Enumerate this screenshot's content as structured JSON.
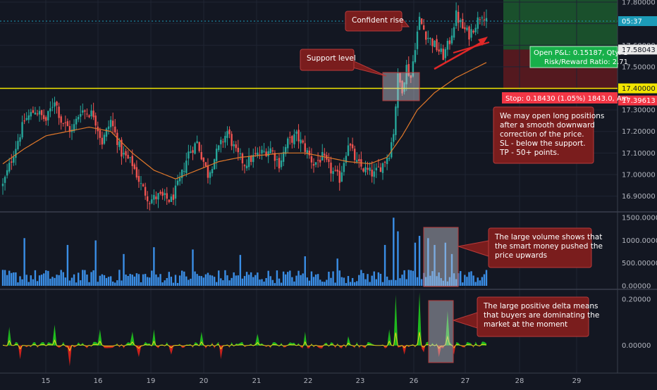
{
  "colors": {
    "background": "#131722",
    "grid": "#1f2433",
    "up_candle": "#26a69a",
    "down_candle": "#ef5350",
    "ma_line": "#e0782a",
    "support_line": "#f2e600",
    "volume_bar": "#3a8ee6",
    "delta_positive": "#22d01e",
    "delta_negative": "#e8231c",
    "delta_line": "#e6d21a",
    "annotation_fill": "#7a1d1d",
    "annotation_border": "#b83a3a",
    "highlight_box": "#c9ccd6",
    "profit_zone": "#1c5a2e",
    "loss_zone": "#5c1a1f",
    "price_badge": "#2a2e39",
    "current_price_badge": "#1c9bb8",
    "support_badge": "#f2e600",
    "stop_badge": "#f23645",
    "pnl_badge": "#18b04a"
  },
  "chart_data": [
    {
      "type": "candlestick",
      "name": "price",
      "x_ticks": [
        "15",
        "16",
        "19",
        "20",
        "21",
        "22",
        "23",
        "26",
        "27",
        "28",
        "29"
      ],
      "y_ticks": [
        "16.90000",
        "17.00000",
        "17.10000",
        "17.20000",
        "17.30000",
        "17.40000",
        "17.50000",
        "17.60000",
        "17.70000",
        "17.80000"
      ],
      "ylim": [
        16.83,
        17.81
      ],
      "support_level": 17.4,
      "current_price": "05:37",
      "price_labels": {
        "take_profit": "17.58043",
        "support": "17.40000",
        "stop": "17.39613"
      },
      "position": {
        "entry": 17.58,
        "take_profit_top": 17.81,
        "stop": 17.396,
        "pnl_text": "Open P&L: 0.15187, Qty: 1",
        "risk_reward_text": "Risk/Reward Ratio: 2.71",
        "stop_text": "Stop: 0.18430 (1.05%) 1843.0, Am"
      },
      "annotations": [
        {
          "text": "Confident rise"
        },
        {
          "text": "Support level"
        },
        {
          "text": [
            "We may open long positions",
            "after a smooth downward",
            "correction of the price.",
            "SL - below the support.",
            "TP - 50+ points."
          ]
        }
      ],
      "close_anchors": [
        [
          0,
          16.95
        ],
        [
          5,
          17.1
        ],
        [
          10,
          17.25
        ],
        [
          15,
          17.3
        ],
        [
          20,
          17.25
        ],
        [
          24,
          17.35
        ],
        [
          27,
          17.25
        ],
        [
          32,
          17.2
        ],
        [
          36,
          17.3
        ],
        [
          42,
          17.28
        ],
        [
          46,
          17.15
        ],
        [
          50,
          17.25
        ],
        [
          55,
          17.1
        ],
        [
          60,
          17.05
        ],
        [
          64,
          16.95
        ],
        [
          68,
          16.88
        ],
        [
          72,
          16.9
        ],
        [
          78,
          16.88
        ],
        [
          82,
          16.97
        ],
        [
          86,
          17.1
        ],
        [
          90,
          17.15
        ],
        [
          95,
          17.0
        ],
        [
          99,
          17.1
        ],
        [
          104,
          17.2
        ],
        [
          108,
          17.1
        ],
        [
          112,
          17.05
        ],
        [
          116,
          17.08
        ],
        [
          120,
          17.1
        ],
        [
          124,
          17.12
        ],
        [
          128,
          17.05
        ],
        [
          132,
          17.15
        ],
        [
          136,
          17.18
        ],
        [
          140,
          17.12
        ],
        [
          144,
          17.05
        ],
        [
          148,
          17.08
        ],
        [
          152,
          17.02
        ],
        [
          156,
          16.98
        ],
        [
          160,
          17.15
        ],
        [
          164,
          17.05
        ],
        [
          168,
          17.02
        ],
        [
          172,
          17.0
        ],
        [
          176,
          17.05
        ],
        [
          179,
          17.1
        ],
        [
          181,
          17.2
        ],
        [
          183,
          17.45
        ],
        [
          185,
          17.4
        ],
        [
          187,
          17.5
        ],
        [
          189,
          17.45
        ],
        [
          191,
          17.6
        ],
        [
          193,
          17.72
        ],
        [
          196,
          17.65
        ],
        [
          200,
          17.6
        ],
        [
          204,
          17.55
        ],
        [
          207,
          17.62
        ],
        [
          210,
          17.74
        ],
        [
          213,
          17.68
        ],
        [
          216,
          17.65
        ],
        [
          219,
          17.7
        ],
        [
          222,
          17.75
        ],
        [
          224,
          17.73
        ]
      ],
      "ma_anchors": [
        [
          0,
          17.05
        ],
        [
          10,
          17.12
        ],
        [
          20,
          17.18
        ],
        [
          30,
          17.2
        ],
        [
          40,
          17.22
        ],
        [
          50,
          17.2
        ],
        [
          60,
          17.1
        ],
        [
          70,
          17.02
        ],
        [
          80,
          16.98
        ],
        [
          90,
          17.02
        ],
        [
          100,
          17.06
        ],
        [
          110,
          17.08
        ],
        [
          120,
          17.09
        ],
        [
          130,
          17.1
        ],
        [
          140,
          17.1
        ],
        [
          150,
          17.08
        ],
        [
          160,
          17.06
        ],
        [
          170,
          17.05
        ],
        [
          178,
          17.08
        ],
        [
          185,
          17.18
        ],
        [
          192,
          17.3
        ],
        [
          200,
          17.38
        ],
        [
          210,
          17.45
        ],
        [
          218,
          17.49
        ],
        [
          224,
          17.52
        ]
      ]
    },
    {
      "type": "bar",
      "name": "volume",
      "y_ticks": [
        "0.00000",
        "500.00000",
        "1000.00000",
        "1500.00000"
      ],
      "ylim": [
        0,
        1550
      ],
      "annotation": [
        "The large volume shows that",
        "the smart money pushed the",
        "price upwards"
      ],
      "spikes": [
        [
          10,
          1050
        ],
        [
          30,
          900
        ],
        [
          43,
          1000
        ],
        [
          56,
          700
        ],
        [
          70,
          850
        ],
        [
          88,
          800
        ],
        [
          110,
          680
        ],
        [
          140,
          650
        ],
        [
          155,
          600
        ],
        [
          177,
          900
        ],
        [
          181,
          1500
        ],
        [
          183,
          1200
        ],
        [
          191,
          950
        ],
        [
          193,
          1100
        ],
        [
          197,
          1050
        ],
        [
          200,
          900
        ],
        [
          205,
          950
        ],
        [
          208,
          700
        ]
      ]
    },
    {
      "type": "area",
      "name": "delta",
      "y_ticks": [
        "0.00000",
        "0.20000"
      ],
      "ylim": [
        -0.12,
        0.24
      ],
      "annotation": [
        "The large positive delta means",
        "that buyers are dominating the",
        "market at the moment"
      ],
      "spikes": [
        [
          3,
          0.08
        ],
        [
          8,
          -0.06
        ],
        [
          24,
          0.09
        ],
        [
          31,
          -0.09
        ],
        [
          45,
          0.07
        ],
        [
          60,
          0.06
        ],
        [
          63,
          -0.05
        ],
        [
          70,
          0.07
        ],
        [
          78,
          -0.04
        ],
        [
          92,
          0.06
        ],
        [
          101,
          -0.06
        ],
        [
          118,
          0.05
        ],
        [
          140,
          0.06
        ],
        [
          160,
          0.04
        ],
        [
          179,
          0.07
        ],
        [
          182,
          0.22
        ],
        [
          186,
          -0.04
        ],
        [
          193,
          0.23
        ],
        [
          195,
          -0.03
        ],
        [
          202,
          -0.05
        ],
        [
          206,
          0.15
        ],
        [
          209,
          -0.04
        ]
      ]
    }
  ]
}
